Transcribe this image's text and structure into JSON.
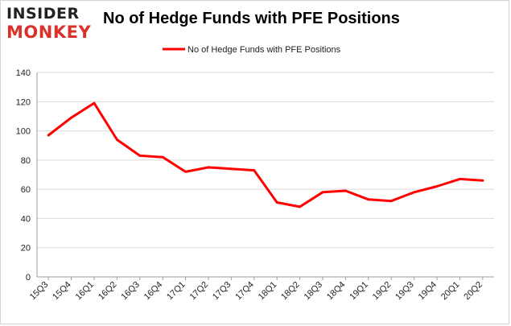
{
  "logo": {
    "line1": "INSIDER",
    "line2": "MONKEY"
  },
  "chart_data": {
    "type": "line",
    "title": "No of Hedge Funds with PFE Positions",
    "xlabel": "",
    "ylabel": "",
    "categories": [
      "15Q3",
      "15Q4",
      "16Q1",
      "16Q2",
      "16Q3",
      "16Q4",
      "17Q1",
      "17Q2",
      "17Q3",
      "17Q4",
      "18Q1",
      "18Q2",
      "18Q3",
      "18Q4",
      "19Q1",
      "19Q2",
      "19Q3",
      "19Q4",
      "20Q1",
      "20Q2"
    ],
    "series": [
      {
        "name": "No of Hedge Funds with PFE Positions",
        "color": "#ff0000",
        "values": [
          97,
          109,
          119,
          94,
          83,
          82,
          72,
          75,
          74,
          73,
          51,
          48,
          58,
          59,
          53,
          52,
          58,
          62,
          67,
          66
        ]
      }
    ],
    "ylim": [
      0,
      140
    ],
    "yticks": [
      0,
      20,
      40,
      60,
      80,
      100,
      120,
      140
    ],
    "grid": true,
    "legend": "top-center"
  }
}
